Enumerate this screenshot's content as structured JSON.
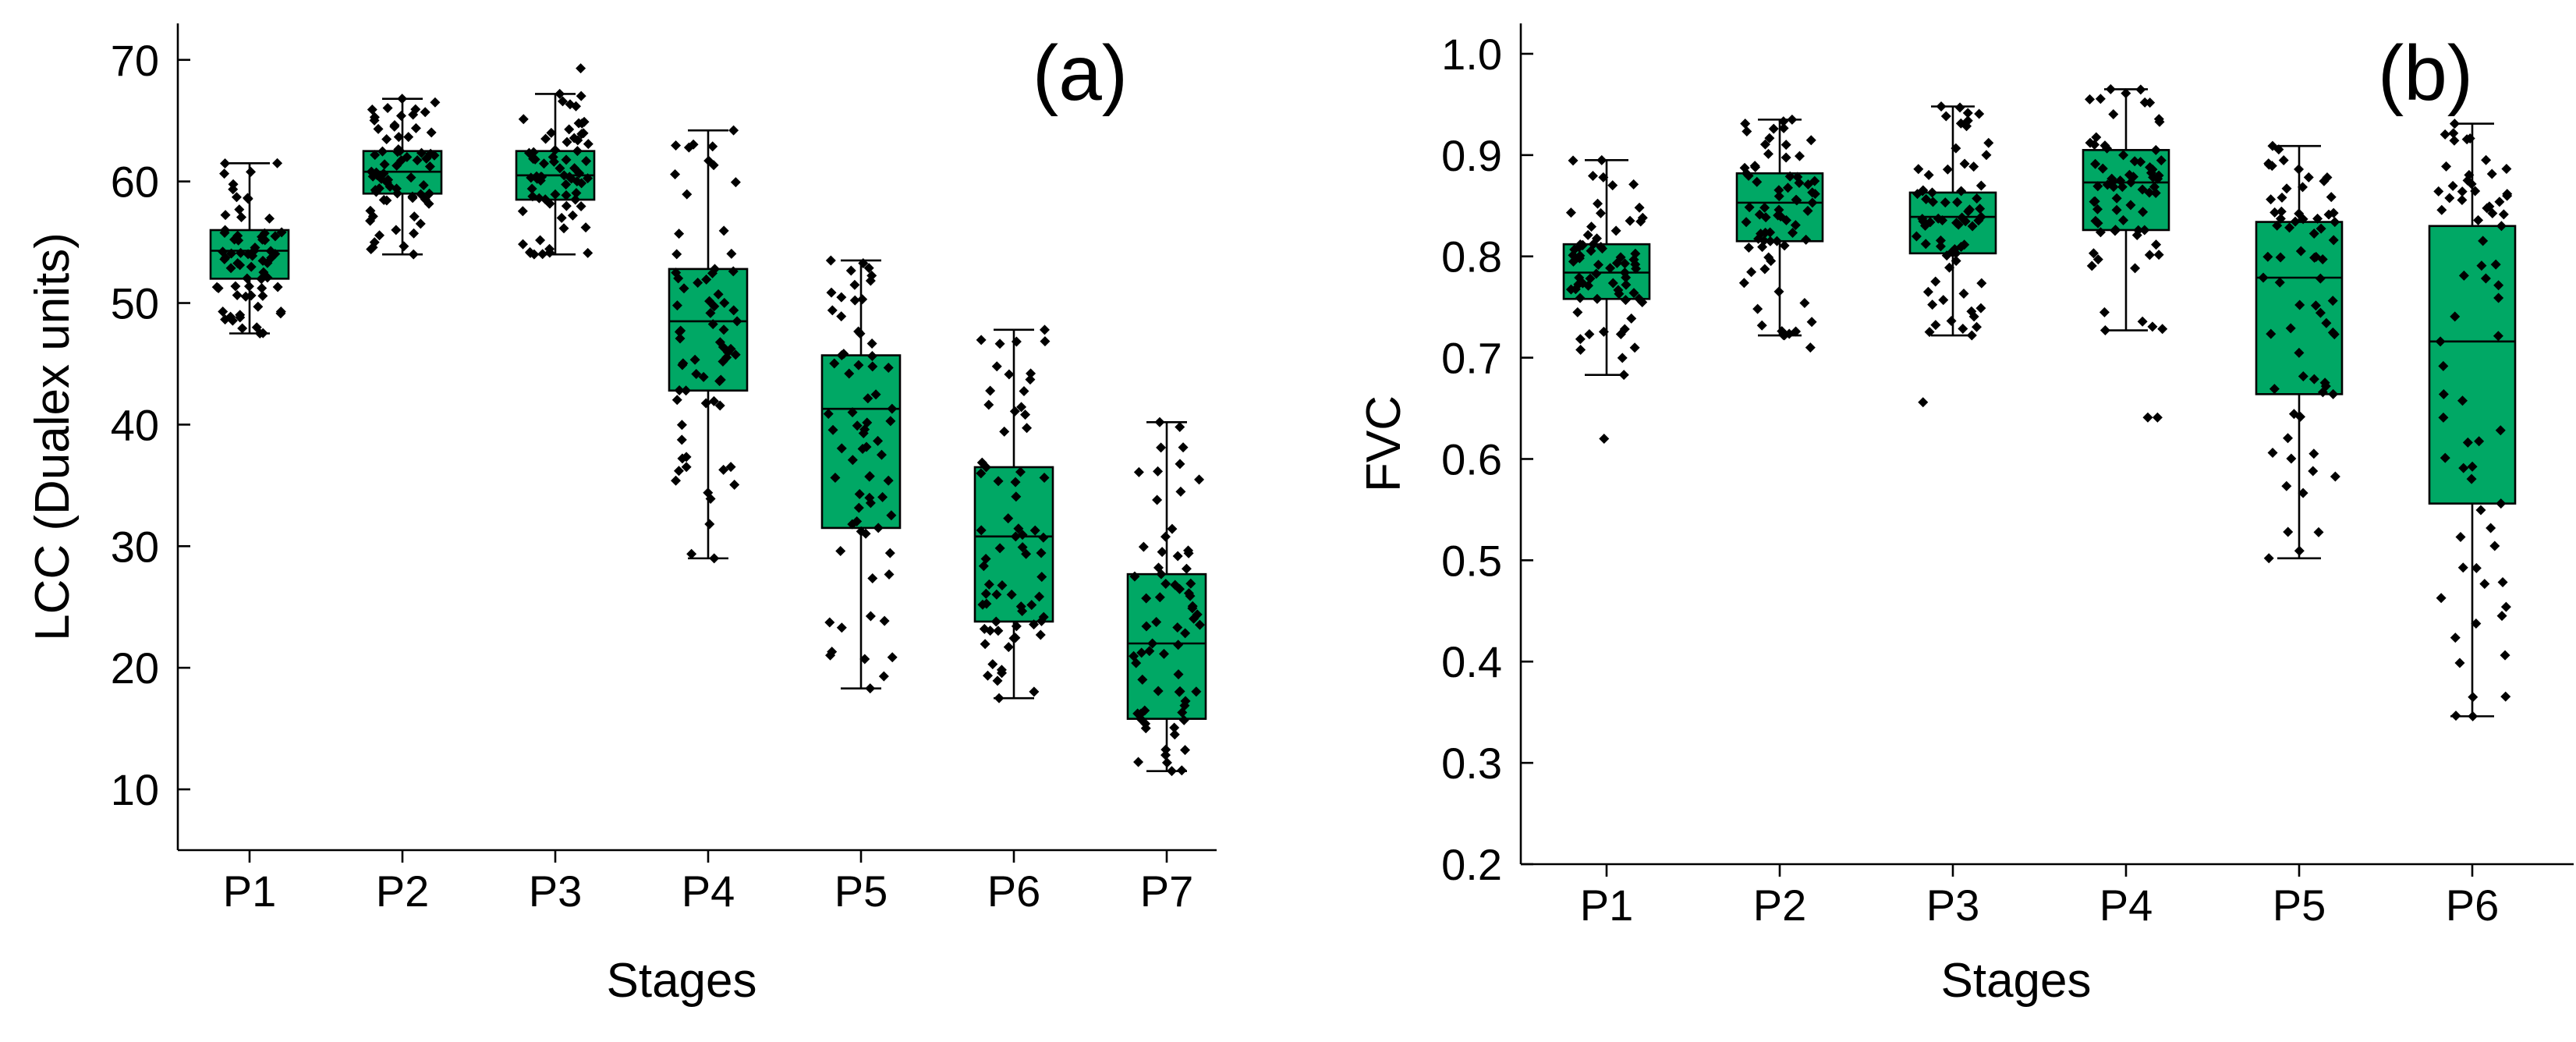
{
  "chart_data": [
    {
      "type": "box",
      "panel_label": "(a)",
      "xlabel": "Stages",
      "ylabel": "LCC (Dualex units)",
      "ylim": [
        5,
        73
      ],
      "yticks": [
        10,
        20,
        30,
        40,
        50,
        60,
        70
      ],
      "ytick_labels": [
        "10",
        "20",
        "30",
        "40",
        "50",
        "60",
        "70"
      ],
      "categories": [
        "P1",
        "P2",
        "P3",
        "P4",
        "P5",
        "P6",
        "P7"
      ],
      "boxes": [
        {
          "min": 47.5,
          "q1": 52.0,
          "median": 54.3,
          "q3": 56.0,
          "max": 61.5
        },
        {
          "min": 54.0,
          "q1": 59.0,
          "median": 60.8,
          "q3": 62.5,
          "max": 66.8
        },
        {
          "min": 54.0,
          "q1": 58.5,
          "median": 60.5,
          "q3": 62.5,
          "max": 67.2
        },
        {
          "min": 29.0,
          "q1": 42.8,
          "median": 48.5,
          "q3": 52.8,
          "max": 64.2
        },
        {
          "min": 18.3,
          "q1": 31.5,
          "median": 41.3,
          "q3": 45.7,
          "max": 53.5
        },
        {
          "min": 17.5,
          "q1": 23.8,
          "median": 30.8,
          "q3": 36.5,
          "max": 47.8
        },
        {
          "min": 11.5,
          "q1": 15.8,
          "median": 22.0,
          "q3": 27.7,
          "max": 40.2
        }
      ],
      "outliers": [
        [],
        [],
        [
          69.3
        ],
        [],
        [],
        [],
        []
      ],
      "points_per_group": 70,
      "point_color": "#000000",
      "box_color": "#00a865"
    },
    {
      "type": "box",
      "panel_label": "(b)",
      "xlabel": "Stages",
      "ylabel": "FVC",
      "ylim": [
        0.2,
        1.03
      ],
      "yticks": [
        0.2,
        0.3,
        0.4,
        0.5,
        0.6,
        0.7,
        0.8,
        0.9,
        1.0
      ],
      "ytick_labels": [
        "0.2",
        "0.3",
        "0.4",
        "0.5",
        "0.6",
        "0.7",
        "0.8",
        "0.9",
        "1.0"
      ],
      "categories": [
        "P1",
        "P2",
        "P3",
        "P4",
        "P5",
        "P6"
      ],
      "boxes": [
        {
          "min": 0.683,
          "q1": 0.758,
          "median": 0.784,
          "q3": 0.812,
          "max": 0.895
        },
        {
          "min": 0.722,
          "q1": 0.815,
          "median": 0.853,
          "q3": 0.882,
          "max": 0.935
        },
        {
          "min": 0.722,
          "q1": 0.803,
          "median": 0.839,
          "q3": 0.863,
          "max": 0.948
        },
        {
          "min": 0.727,
          "q1": 0.826,
          "median": 0.873,
          "q3": 0.905,
          "max": 0.965
        },
        {
          "min": 0.502,
          "q1": 0.664,
          "median": 0.779,
          "q3": 0.834,
          "max": 0.909
        },
        {
          "min": 0.346,
          "q1": 0.556,
          "median": 0.716,
          "q3": 0.83,
          "max": 0.931
        }
      ],
      "outliers": [
        [
          0.62
        ],
        [
          0.71
        ],
        [
          0.656
        ],
        [
          0.641,
          0.641
        ],
        [],
        []
      ],
      "points_per_group": 70,
      "point_color": "#000000",
      "box_color": "#00a865"
    }
  ]
}
